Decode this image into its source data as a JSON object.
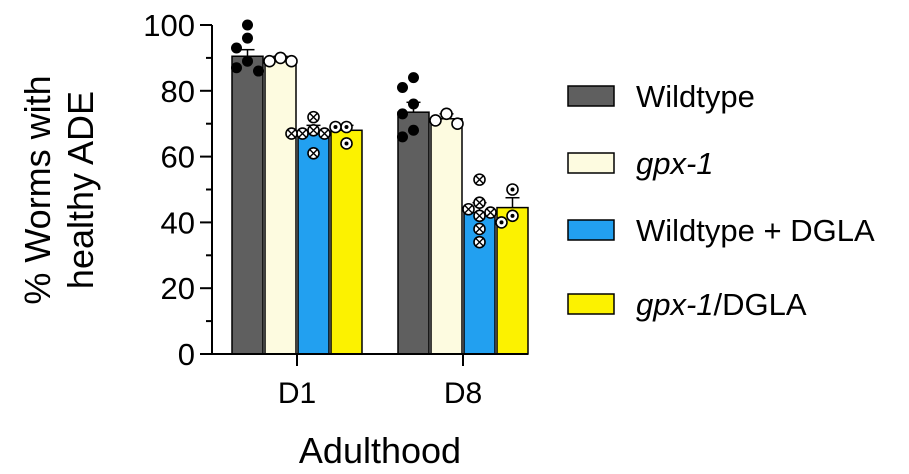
{
  "chart_data": {
    "type": "bar",
    "xlabel": "Adulthood",
    "ylabel_lines": [
      "% Worms with",
      "healthy ADE"
    ],
    "ylim": [
      0,
      100
    ],
    "yticks": [
      0,
      20,
      40,
      60,
      80,
      100
    ],
    "grid": false,
    "legend_placement": "right",
    "categories": [
      "D1",
      "D8"
    ],
    "series": [
      {
        "name": "Wildtype",
        "legend_parts": [
          {
            "text": "Wildtype",
            "italic": false
          }
        ],
        "color": "#5f5f5f",
        "marker": "filled",
        "values": [
          90.5,
          73.5
        ],
        "errors": [
          2.0,
          3.0
        ],
        "points": [
          [
            100,
            96,
            93,
            89,
            87,
            86
          ],
          [
            84,
            81,
            76,
            73,
            68,
            66
          ]
        ]
      },
      {
        "name": "gpx-1",
        "legend_parts": [
          {
            "text": "gpx-1",
            "italic": true
          }
        ],
        "color": "#fdfbe0",
        "marker": "open",
        "values": [
          89.5,
          71.5
        ],
        "errors": [
          1.0,
          1.5
        ],
        "points": [
          [
            90,
            89,
            89
          ],
          [
            73,
            71,
            70
          ]
        ]
      },
      {
        "name": "Wildtype + DGLA",
        "legend_parts": [
          {
            "text": "Wildtype + DGLA",
            "italic": false
          }
        ],
        "color": "#22a0f0",
        "marker": "crossed",
        "values": [
          67.5,
          43.0
        ],
        "errors": [
          2.0,
          3.0
        ],
        "points": [
          [
            72,
            68,
            67,
            67,
            67,
            61
          ],
          [
            53,
            46,
            44,
            43,
            42,
            38,
            34
          ]
        ]
      },
      {
        "name": "gpx-1/DGLA",
        "legend_parts": [
          {
            "text": "gpx-1",
            "italic": true
          },
          {
            "text": "/DGLA",
            "italic": false
          }
        ],
        "color": "#fcf200",
        "marker": "dotted",
        "values": [
          68.0,
          44.5
        ],
        "errors": [
          1.5,
          3.0
        ],
        "points": [
          [
            69,
            69,
            64
          ],
          [
            50,
            42,
            40
          ]
        ]
      }
    ]
  }
}
